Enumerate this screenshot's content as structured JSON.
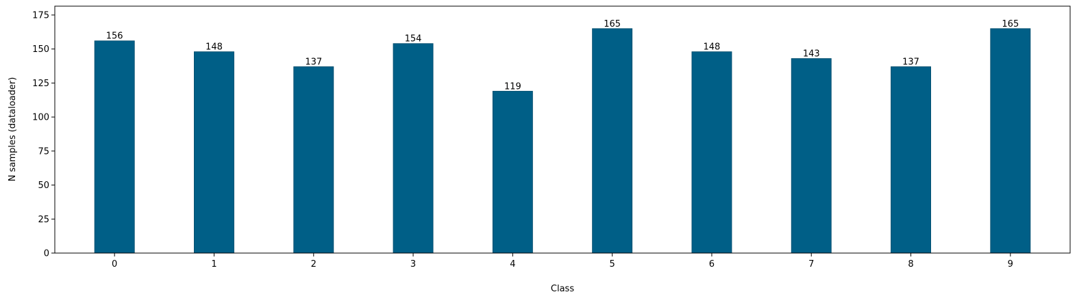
{
  "chart_data": {
    "type": "bar",
    "categories": [
      "0",
      "1",
      "2",
      "3",
      "4",
      "5",
      "6",
      "7",
      "8",
      "9"
    ],
    "values": [
      156,
      148,
      137,
      154,
      119,
      165,
      148,
      143,
      137,
      165
    ],
    "xlabel": "Class",
    "ylabel": "N samples (dataloader)",
    "ylim": [
      0,
      181.5
    ],
    "yticks": [
      0,
      25,
      50,
      75,
      100,
      125,
      150,
      175
    ],
    "grid": false,
    "legend": "none",
    "bar_color": "#005f87",
    "bar_edge_color": "#004a6a"
  }
}
